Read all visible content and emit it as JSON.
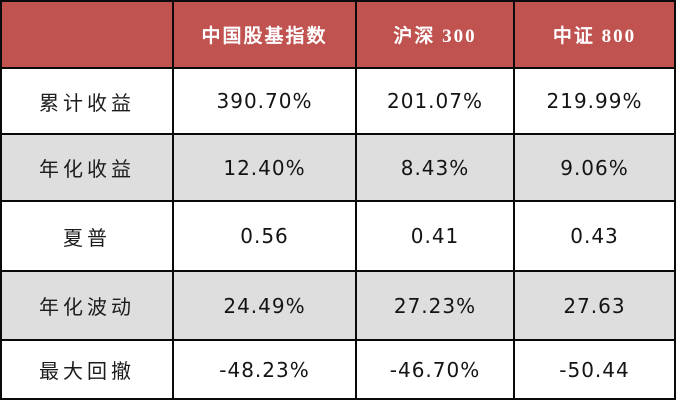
{
  "table": {
    "header": {
      "corner": "",
      "columns": [
        "中国股基指数",
        "沪深 300",
        "中证 800"
      ]
    },
    "rows": [
      {
        "label": "累计收益",
        "values": [
          "390.70%",
          "201.07%",
          "219.99%"
        ]
      },
      {
        "label": "年化收益",
        "values": [
          "12.40%",
          "8.43%",
          "9.06%"
        ]
      },
      {
        "label": "夏普",
        "values": [
          "0.56",
          "0.41",
          "0.43"
        ]
      },
      {
        "label": "年化波动",
        "values": [
          "24.49%",
          "27.23%",
          "27.63"
        ]
      },
      {
        "label": "最大回撤",
        "values": [
          "-48.23%",
          "-46.70%",
          "-50.44"
        ]
      }
    ],
    "colors": {
      "header_bg": "#c05250",
      "header_text": "#ffffff",
      "row_bg": "#ffffff",
      "row_alt_bg": "#dedede",
      "border": "#0a0a0a",
      "text": "#141414"
    }
  },
  "chart_data": {
    "type": "table",
    "columns": [
      "",
      "中国股基指数",
      "沪深 300",
      "中证 800"
    ],
    "rows": [
      [
        "累计收益",
        "390.70%",
        "201.07%",
        "219.99%"
      ],
      [
        "年化收益",
        "12.40%",
        "8.43%",
        "9.06%"
      ],
      [
        "夏普",
        "0.56",
        "0.41",
        "0.43"
      ],
      [
        "年化波动",
        "24.49%",
        "27.23%",
        "27.63"
      ],
      [
        "最大回撤",
        "-48.23%",
        "-46.70%",
        "-50.44"
      ]
    ],
    "series": [
      {
        "name": "中国股基指数",
        "values": [
          390.7,
          12.4,
          0.56,
          24.49,
          -48.23
        ]
      },
      {
        "name": "沪深 300",
        "values": [
          201.07,
          8.43,
          0.41,
          27.23,
          -46.7
        ]
      },
      {
        "name": "中证 800",
        "values": [
          219.99,
          9.06,
          0.43,
          27.63,
          -50.44
        ]
      }
    ],
    "categories": [
      "累计收益",
      "年化收益",
      "夏普",
      "年化波动",
      "最大回撤"
    ],
    "title": "",
    "layout": {
      "grid": "on",
      "header_position": "top"
    }
  }
}
